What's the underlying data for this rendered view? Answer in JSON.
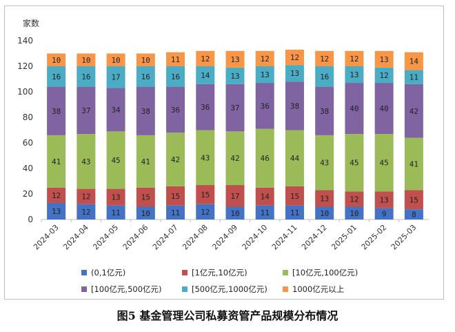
{
  "caption": "图5   基金管理公司私募资管产品规模分布情况",
  "chart_data": {
    "type": "bar",
    "stacked": true,
    "ylabel": "家数",
    "ylim": [
      0,
      140
    ],
    "yticks": [
      0,
      20,
      40,
      60,
      80,
      100,
      120,
      140
    ],
    "grid": false,
    "legend_position": "bottom",
    "categories": [
      "2024-03",
      "2024-04",
      "2024-05",
      "2024-06",
      "2024-07",
      "2024-08",
      "2024-09",
      "2024-10",
      "2024-11",
      "2024-12",
      "2025-01",
      "2025-02",
      "2025-03"
    ],
    "series": [
      {
        "name": "(0,1亿元)",
        "color": "#4472C4",
        "values": [
          13,
          12,
          11,
          10,
          11,
          12,
          10,
          11,
          11,
          10,
          10,
          9,
          8
        ]
      },
      {
        "name": "[1亿元,10亿元)",
        "color": "#C0504D",
        "values": [
          12,
          12,
          13,
          15,
          15,
          15,
          17,
          14,
          15,
          13,
          12,
          13,
          15
        ]
      },
      {
        "name": "[10亿元,100亿元)",
        "color": "#9BBB59",
        "values": [
          41,
          43,
          45,
          41,
          42,
          43,
          42,
          46,
          44,
          43,
          45,
          45,
          41
        ]
      },
      {
        "name": "[100亿元,500亿元)",
        "color": "#8064A2",
        "values": [
          38,
          37,
          34,
          38,
          36,
          36,
          37,
          36,
          38,
          38,
          40,
          40,
          42
        ]
      },
      {
        "name": "[500亿元,1000亿元)",
        "color": "#4BACC6",
        "values": [
          16,
          16,
          17,
          16,
          16,
          14,
          13,
          13,
          13,
          16,
          13,
          12,
          11
        ]
      },
      {
        "name": "1000亿元以上",
        "color": "#F79646",
        "values": [
          10,
          10,
          10,
          10,
          11,
          12,
          13,
          12,
          12,
          12,
          12,
          13,
          14
        ]
      }
    ]
  }
}
